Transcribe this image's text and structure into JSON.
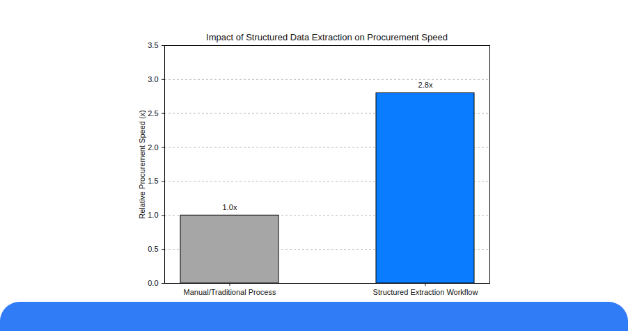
{
  "chart_data": {
    "type": "bar",
    "title": "Impact of Structured Data Extraction on Procurement Speed",
    "categories": [
      "Manual/Traditional Process",
      "Structured Extraction Workflow"
    ],
    "values": [
      1.0,
      2.8
    ],
    "value_labels": [
      "1.0x",
      "2.8x"
    ],
    "colors": [
      "#a6a6a6",
      "#0a7cff"
    ],
    "y_label": "Relative Procurement Speed (x)",
    "ylim": [
      0,
      3.5
    ],
    "yticks": [
      {
        "value": 0,
        "label": "0.0"
      },
      0.5,
      {
        "value": 1,
        "label": "1.0"
      },
      1.5,
      {
        "value": 2,
        "label": "2.0"
      },
      2.5,
      {
        "value": 3,
        "label": "3.0"
      },
      3.5
    ],
    "grid": true,
    "data_labels": true
  }
}
